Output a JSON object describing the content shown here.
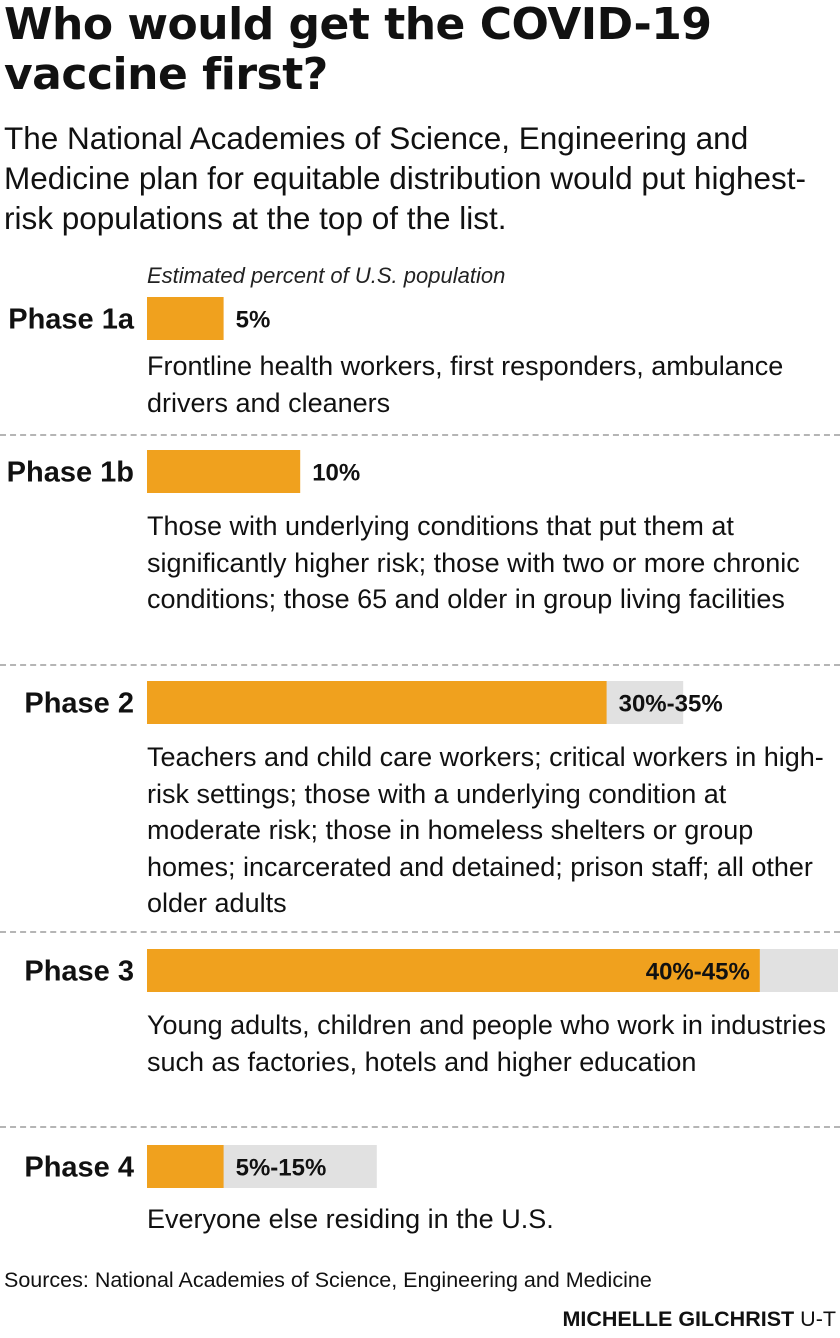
{
  "title": "Who would get the COVID-19 vaccine first?",
  "subtitle": "The National Academies of Science, Engineering and Medicine plan for equitable distribution would put highest-risk populations at the top of the list.",
  "source": "Sources: National Academies of Science, Engineering and Medicine",
  "credit": {
    "name": "MICHELLE GILCHRIST",
    "org": "U-T"
  },
  "colors": {
    "bar": "#f0a11e",
    "range": "#e1e1e1",
    "divider": "#b5b5b5"
  },
  "chart_data": {
    "type": "bar",
    "orientation": "horizontal",
    "subhead": "Estimated percent of U.S. population",
    "xlim": [
      0,
      45
    ],
    "phases": [
      {
        "label": "Phase 1a",
        "low": 5,
        "high": 5,
        "value_label": "5%",
        "description": "Frontline health workers, first responders, ambulance drivers and cleaners"
      },
      {
        "label": "Phase 1b",
        "low": 10,
        "high": 10,
        "value_label": "10%",
        "description": "Those with underlying conditions that put them at significantly higher risk; those with two or more chronic conditions; those 65 and older in group living facilities"
      },
      {
        "label": "Phase 2",
        "low": 30,
        "high": 35,
        "value_label": "30%-35%",
        "description": "Teachers and child care workers; critical workers in high-risk settings; those with a underlying condition at moderate risk; those in homeless shelters or group homes; incarcerated and detained; prison staff; all other older adults"
      },
      {
        "label": "Phase 3",
        "low": 40,
        "high": 45,
        "value_label": "40%-45%",
        "description": "Young adults, children and people who work in industries such as factories, hotels and higher education"
      },
      {
        "label": "Phase 4",
        "low": 5,
        "high": 15,
        "value_label": "5%-15%",
        "description": "Everyone else residing in the U.S."
      }
    ]
  }
}
